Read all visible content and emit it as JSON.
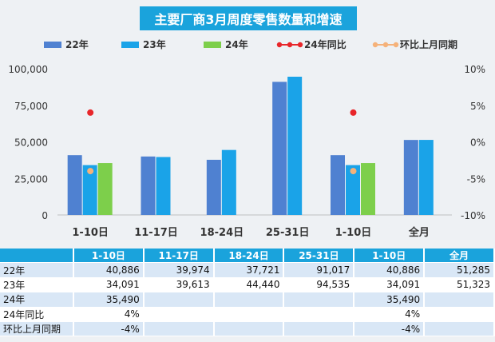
{
  "chart_data": {
    "type": "bar",
    "title": "主要厂商3月周度零售数量和增速",
    "categories": [
      "1-10日",
      "11-17日",
      "18-24日",
      "25-31日",
      "1-10日",
      "全月"
    ],
    "series": [
      {
        "name": "22年",
        "values": [
          40886,
          39974,
          37721,
          91017,
          40886,
          51285
        ],
        "color": "#4f81d1"
      },
      {
        "name": "23年",
        "values": [
          34091,
          39613,
          44440,
          94535,
          34091,
          51323
        ],
        "color": "#1aa3e8"
      },
      {
        "name": "24年",
        "values": [
          35490,
          null,
          null,
          null,
          35490,
          null
        ],
        "color": "#7dcf4b"
      }
    ],
    "line_series": [
      {
        "name": "24年同比",
        "values": [
          4,
          null,
          null,
          null,
          4,
          null
        ],
        "color": "#e8262a",
        "unit": "%"
      },
      {
        "name": "环比上月同期",
        "values": [
          -4,
          null,
          null,
          null,
          -4,
          null
        ],
        "color": "#f5b27a",
        "unit": "%"
      }
    ],
    "ylim": [
      0,
      100000
    ],
    "yticks": [
      "0",
      "25,000",
      "50,000",
      "75,000",
      "100,000"
    ],
    "y2lim": [
      -10,
      10
    ],
    "y2ticks": [
      "-10%",
      "-5%",
      "0%",
      "5%",
      "10%"
    ],
    "legend_position": "top",
    "grid": false
  },
  "table": {
    "headers": [
      "1-10日",
      "11-17日",
      "18-24日",
      "25-31日",
      "1-10日",
      "全月"
    ],
    "rows": [
      {
        "label": "22年",
        "cells": [
          "40,886",
          "39,974",
          "37,721",
          "91,017",
          "40,886",
          "51,285"
        ]
      },
      {
        "label": "23年",
        "cells": [
          "34,091",
          "39,613",
          "44,440",
          "94,535",
          "34,091",
          "51,323"
        ]
      },
      {
        "label": "24年",
        "cells": [
          "35,490",
          "",
          "",
          "",
          "35,490",
          ""
        ]
      },
      {
        "label": "24年同比",
        "cells": [
          "4%",
          "",
          "",
          "",
          "4%",
          ""
        ]
      },
      {
        "label": "环比上月同期",
        "cells": [
          "-4%",
          "",
          "",
          "",
          "-4%",
          ""
        ]
      }
    ]
  }
}
